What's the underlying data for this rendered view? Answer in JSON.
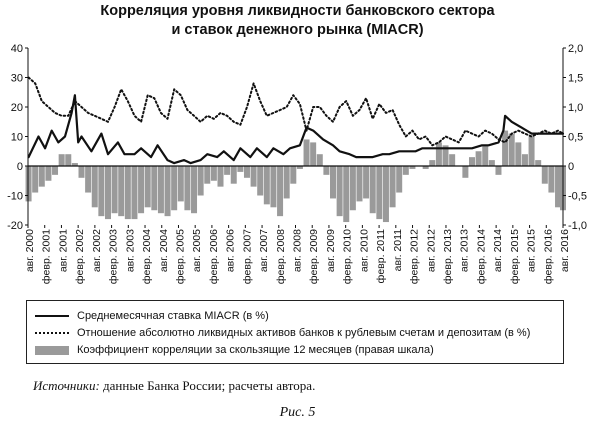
{
  "chart_data": {
    "type": "line",
    "title_lines": [
      "Корреляция уровня ликвидности банковского сектора",
      "и ставок денежного рынка (MIACR)"
    ],
    "left_axis": {
      "min": -20,
      "max": 40,
      "ticks": [
        "40",
        "30",
        "20",
        "10",
        "0",
        "-10",
        "-20"
      ]
    },
    "right_axis": {
      "min": -1.0,
      "max": 2.0,
      "ticks": [
        "2,0",
        "1,5",
        "1,0",
        "0,5",
        "0",
        "-0,5",
        "-1,0"
      ]
    },
    "x_axis": {
      "start": 2000.583,
      "end": 2016.75
    },
    "x_tick_labels": [
      "авг. 2000",
      "февр. 2001",
      "авг. 2001",
      "февр. 2002",
      "авг. 2002",
      "февр. 2003",
      "авг. 2003",
      "февр. 2004",
      "авг. 2004",
      "февр. 2005",
      "авг. 2005",
      "февр. 2006",
      "авг. 2006",
      "февр. 2007",
      "авг. 2007",
      "февр. 2008",
      "авг. 2008",
      "февр. 2009",
      "авг. 2009",
      "февр. 2010",
      "авг. 2010",
      "февр. 2011",
      "авг. 2011",
      "февр. 2012",
      "авг. 2012",
      "февр. 2013",
      "авг. 2013",
      "февр. 2014",
      "авг. 2014",
      "февр. 2015",
      "авг. 2015",
      "февр. 2016",
      "авг. 2016"
    ],
    "series": [
      {
        "name": "Среднемесячная ставка MIACR (в %)",
        "style": "solid",
        "axis": "left",
        "color": "#111111",
        "x": [
          2000.6,
          2000.9,
          2001.1,
          2001.3,
          2001.5,
          2001.7,
          2001.9,
          2002.0,
          2002.1,
          2002.2,
          2002.5,
          2002.8,
          2003.0,
          2003.3,
          2003.5,
          2003.8,
          2004.0,
          2004.3,
          2004.5,
          2004.8,
          2005.0,
          2005.3,
          2005.5,
          2005.8,
          2006.0,
          2006.3,
          2006.5,
          2006.8,
          2007.0,
          2007.3,
          2007.5,
          2007.8,
          2008.0,
          2008.3,
          2008.5,
          2008.8,
          2009.0,
          2009.2,
          2009.5,
          2009.8,
          2010.0,
          2010.3,
          2010.5,
          2010.8,
          2011.0,
          2011.3,
          2011.5,
          2011.8,
          2012.0,
          2012.3,
          2012.5,
          2012.8,
          2013.0,
          2013.3,
          2013.5,
          2013.8,
          2014.0,
          2014.3,
          2014.5,
          2014.8,
          2014.95,
          2015.0,
          2015.2,
          2015.5,
          2015.8,
          2016.0,
          2016.3,
          2016.5,
          2016.75
        ],
        "values": [
          3,
          10,
          6,
          12,
          8,
          10,
          18,
          24,
          8,
          10,
          5,
          11,
          4,
          8,
          4,
          4,
          6,
          3,
          7,
          2,
          1,
          2,
          1,
          2,
          4,
          3,
          5,
          2,
          6,
          3,
          6,
          3,
          6,
          4,
          6,
          7,
          13,
          12,
          9,
          7,
          5,
          4,
          3,
          3,
          3,
          4,
          4,
          5,
          5,
          5,
          6,
          6,
          6,
          6,
          6,
          6,
          6,
          7,
          7,
          8,
          12,
          17,
          15,
          13,
          11,
          11,
          11,
          11,
          11
        ]
      },
      {
        "name": "Отношение абсолютно ликвидных активов банков к рублевым счетам и депозитам (в %)",
        "style": "dotted",
        "axis": "left",
        "color": "#111111",
        "x": [
          2000.6,
          2000.8,
          2001.0,
          2001.2,
          2001.4,
          2001.6,
          2001.8,
          2002.0,
          2002.2,
          2002.4,
          2002.6,
          2002.8,
          2003.0,
          2003.2,
          2003.4,
          2003.6,
          2003.8,
          2004.0,
          2004.2,
          2004.4,
          2004.6,
          2004.8,
          2005.0,
          2005.2,
          2005.4,
          2005.6,
          2005.8,
          2006.0,
          2006.2,
          2006.4,
          2006.6,
          2006.8,
          2007.0,
          2007.2,
          2007.4,
          2007.6,
          2007.8,
          2008.0,
          2008.2,
          2008.4,
          2008.6,
          2008.8,
          2009.0,
          2009.2,
          2009.4,
          2009.6,
          2009.8,
          2010.0,
          2010.2,
          2010.4,
          2010.6,
          2010.8,
          2011.0,
          2011.2,
          2011.4,
          2011.6,
          2011.8,
          2012.0,
          2012.2,
          2012.4,
          2012.6,
          2012.8,
          2013.0,
          2013.2,
          2013.4,
          2013.6,
          2013.8,
          2014.0,
          2014.2,
          2014.4,
          2014.6,
          2014.8,
          2015.0,
          2015.2,
          2015.4,
          2015.6,
          2015.8,
          2016.0,
          2016.2,
          2016.4,
          2016.6,
          2016.75
        ],
        "values": [
          30,
          28,
          22,
          20,
          18,
          17,
          17,
          22,
          20,
          18,
          17,
          16,
          15,
          20,
          26,
          22,
          17,
          15,
          24,
          23,
          18,
          16,
          26,
          24,
          19,
          17,
          15,
          17,
          16,
          18,
          17,
          15,
          14,
          20,
          28,
          22,
          17,
          18,
          19,
          20,
          24,
          21,
          12,
          20,
          20,
          17,
          15,
          20,
          22,
          17,
          19,
          23,
          16,
          21,
          18,
          19,
          14,
          10,
          12,
          9,
          10,
          7,
          8,
          10,
          9,
          8,
          12,
          11,
          10,
          12,
          11,
          9,
          8,
          11,
          12,
          11,
          10,
          11,
          12,
          11,
          12,
          11
        ]
      },
      {
        "name": "Коэффициент корреляции за скользящие 12 месяцев (правая шкала)",
        "style": "bar",
        "axis": "right",
        "color": "#9a9a9a",
        "x": [
          2000.6,
          2000.8,
          2001.0,
          2001.2,
          2001.4,
          2001.6,
          2001.8,
          2002.0,
          2002.2,
          2002.4,
          2002.6,
          2002.8,
          2003.0,
          2003.2,
          2003.4,
          2003.6,
          2003.8,
          2004.0,
          2004.2,
          2004.4,
          2004.6,
          2004.8,
          2005.0,
          2005.2,
          2005.4,
          2005.6,
          2005.8,
          2006.0,
          2006.2,
          2006.4,
          2006.6,
          2006.8,
          2007.0,
          2007.2,
          2007.4,
          2007.6,
          2007.8,
          2008.0,
          2008.2,
          2008.4,
          2008.6,
          2008.8,
          2009.0,
          2009.2,
          2009.4,
          2009.6,
          2009.8,
          2010.0,
          2010.2,
          2010.4,
          2010.6,
          2010.8,
          2011.0,
          2011.2,
          2011.4,
          2011.6,
          2011.8,
          2012.0,
          2012.2,
          2012.4,
          2012.6,
          2012.8,
          2013.0,
          2013.2,
          2013.4,
          2013.6,
          2013.8,
          2014.0,
          2014.2,
          2014.4,
          2014.6,
          2014.8,
          2015.0,
          2015.2,
          2015.4,
          2015.6,
          2015.8,
          2016.0,
          2016.2,
          2016.4,
          2016.6,
          2016.75
        ],
        "values": [
          -0.6,
          -0.45,
          -0.35,
          -0.25,
          -0.15,
          0.2,
          0.2,
          0.05,
          -0.2,
          -0.45,
          -0.7,
          -0.85,
          -0.9,
          -0.8,
          -0.85,
          -0.9,
          -0.9,
          -0.8,
          -0.7,
          -0.75,
          -0.8,
          -0.85,
          -0.75,
          -0.6,
          -0.75,
          -0.8,
          -0.5,
          -0.3,
          -0.25,
          -0.35,
          -0.15,
          -0.3,
          -0.1,
          -0.2,
          -0.35,
          -0.5,
          -0.65,
          -0.7,
          -0.85,
          -0.55,
          -0.3,
          -0.05,
          0.45,
          0.4,
          0.2,
          -0.15,
          -0.55,
          -0.85,
          -0.95,
          -0.75,
          -0.6,
          -0.55,
          -0.8,
          -0.9,
          -0.95,
          -0.7,
          -0.45,
          -0.15,
          -0.05,
          0.0,
          -0.05,
          0.1,
          0.4,
          0.35,
          0.2,
          0.0,
          -0.2,
          0.15,
          0.25,
          0.35,
          0.1,
          -0.15,
          0.6,
          0.55,
          0.4,
          0.2,
          0.5,
          0.1,
          -0.3,
          -0.45,
          -0.7,
          -0.75
        ]
      }
    ]
  },
  "source": {
    "label": "Источники:",
    "text": " данные Банка России; расчеты автора."
  },
  "caption": "Рис. 5"
}
